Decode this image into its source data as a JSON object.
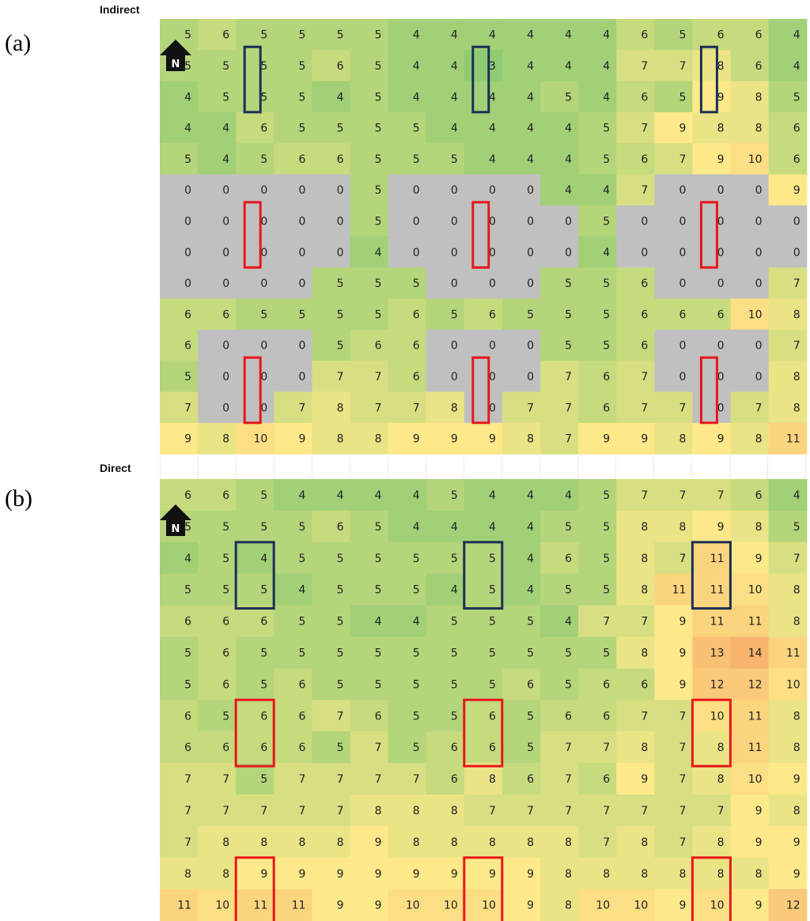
{
  "chart_data": [
    {
      "type": "heatmap",
      "panel_label": "(a)",
      "title": "Indirect",
      "north_marker": "N",
      "values": [
        [
          5,
          6,
          5,
          5,
          5,
          5,
          4,
          4,
          4,
          4,
          4,
          4,
          6,
          5,
          6,
          6,
          4
        ],
        [
          5,
          5,
          5,
          5,
          6,
          5,
          4,
          4,
          3,
          4,
          4,
          4,
          7,
          7,
          8,
          6,
          4
        ],
        [
          4,
          5,
          5,
          5,
          4,
          5,
          4,
          4,
          4,
          4,
          5,
          4,
          6,
          5,
          9,
          8,
          5
        ],
        [
          4,
          4,
          6,
          5,
          5,
          5,
          5,
          4,
          4,
          4,
          4,
          5,
          7,
          9,
          8,
          8,
          6
        ],
        [
          5,
          4,
          5,
          6,
          6,
          5,
          5,
          5,
          4,
          4,
          4,
          5,
          6,
          7,
          9,
          10,
          6
        ],
        [
          0,
          0,
          0,
          0,
          0,
          5,
          0,
          0,
          0,
          0,
          4,
          4,
          7,
          0,
          0,
          0,
          9
        ],
        [
          0,
          0,
          0,
          0,
          0,
          5,
          0,
          0,
          0,
          0,
          0,
          5,
          0,
          0,
          0,
          0,
          0
        ],
        [
          0,
          0,
          0,
          0,
          0,
          4,
          0,
          0,
          0,
          0,
          0,
          4,
          0,
          0,
          0,
          0,
          0
        ],
        [
          0,
          0,
          0,
          0,
          5,
          5,
          5,
          0,
          0,
          0,
          5,
          5,
          6,
          0,
          0,
          0,
          7
        ],
        [
          6,
          6,
          5,
          5,
          5,
          5,
          6,
          5,
          6,
          5,
          5,
          5,
          6,
          6,
          6,
          10,
          8
        ],
        [
          6,
          0,
          0,
          0,
          5,
          6,
          6,
          0,
          0,
          0,
          5,
          5,
          6,
          0,
          0,
          0,
          7
        ],
        [
          5,
          0,
          0,
          0,
          7,
          7,
          6,
          0,
          0,
          0,
          7,
          6,
          7,
          0,
          0,
          0,
          8
        ],
        [
          7,
          0,
          0,
          7,
          8,
          7,
          7,
          8,
          0,
          7,
          7,
          6,
          7,
          7,
          0,
          7,
          8
        ],
        [
          9,
          8,
          10,
          9,
          8,
          8,
          9,
          9,
          9,
          8,
          7,
          9,
          9,
          8,
          9,
          8,
          11
        ]
      ],
      "color_scale": {
        "low": "#8fcb72",
        "mid": "#fde98a",
        "high": "#f8b46d",
        "zero": "#c0c0c0"
      },
      "boxes": [
        {
          "color": "#1b2f55",
          "col": 2,
          "row": 1
        },
        {
          "color": "#1b2f55",
          "col": 8,
          "row": 1
        },
        {
          "color": "#1b2f55",
          "col": 14,
          "row": 1
        },
        {
          "color": "#e8161b",
          "col": 2,
          "row": 6
        },
        {
          "color": "#e8161b",
          "col": 8,
          "row": 6
        },
        {
          "color": "#e8161b",
          "col": 14,
          "row": 6
        },
        {
          "color": "#e8161b",
          "col": 2,
          "row": 11
        },
        {
          "color": "#e8161b",
          "col": 8,
          "row": 11
        },
        {
          "color": "#e8161b",
          "col": 14,
          "row": 11
        }
      ]
    },
    {
      "type": "heatmap",
      "panel_label": "(b)",
      "title": "Direct",
      "north_marker": "N",
      "values": [
        [
          6,
          6,
          5,
          4,
          4,
          4,
          4,
          5,
          4,
          4,
          4,
          5,
          7,
          7,
          7,
          6,
          4
        ],
        [
          5,
          5,
          5,
          5,
          6,
          5,
          4,
          4,
          4,
          4,
          5,
          5,
          8,
          8,
          9,
          8,
          5
        ],
        [
          4,
          5,
          4,
          5,
          5,
          5,
          5,
          5,
          5,
          4,
          6,
          5,
          8,
          7,
          11,
          9,
          7
        ],
        [
          5,
          5,
          5,
          4,
          5,
          5,
          5,
          4,
          5,
          4,
          5,
          5,
          8,
          11,
          11,
          10,
          8
        ],
        [
          6,
          6,
          6,
          5,
          5,
          4,
          4,
          5,
          5,
          5,
          4,
          7,
          7,
          9,
          11,
          11,
          8
        ],
        [
          5,
          6,
          5,
          5,
          5,
          5,
          5,
          5,
          5,
          5,
          5,
          5,
          8,
          9,
          13,
          14,
          11
        ],
        [
          5,
          6,
          5,
          6,
          5,
          5,
          5,
          5,
          5,
          6,
          5,
          6,
          6,
          9,
          12,
          12,
          10
        ],
        [
          6,
          5,
          6,
          6,
          7,
          6,
          5,
          5,
          6,
          5,
          6,
          6,
          7,
          7,
          10,
          11,
          8
        ],
        [
          6,
          6,
          6,
          6,
          5,
          7,
          5,
          6,
          6,
          5,
          7,
          7,
          8,
          7,
          8,
          11,
          8
        ],
        [
          7,
          7,
          5,
          7,
          7,
          7,
          7,
          6,
          8,
          6,
          7,
          6,
          9,
          7,
          8,
          10,
          9
        ],
        [
          7,
          7,
          7,
          7,
          7,
          8,
          8,
          8,
          7,
          7,
          7,
          7,
          7,
          7,
          7,
          9,
          8
        ],
        [
          7,
          8,
          8,
          8,
          8,
          9,
          8,
          8,
          8,
          8,
          8,
          7,
          8,
          7,
          8,
          9,
          9
        ],
        [
          8,
          8,
          9,
          9,
          9,
          9,
          9,
          9,
          9,
          9,
          8,
          8,
          8,
          8,
          8,
          8,
          9
        ],
        [
          11,
          10,
          11,
          11,
          9,
          9,
          10,
          10,
          10,
          9,
          8,
          10,
          10,
          9,
          10,
          9,
          12
        ]
      ],
      "color_scale": {
        "low": "#8fcb72",
        "mid": "#fde98a",
        "high": "#f8b46d",
        "zero": "#c0c0c0"
      },
      "boxes": [
        {
          "color": "#1b2f55",
          "col": 2,
          "row": 2
        },
        {
          "color": "#1b2f55",
          "col": 8,
          "row": 2
        },
        {
          "color": "#1b2f55",
          "col": 14,
          "row": 2
        },
        {
          "color": "#e8161b",
          "col": 2,
          "row": 7
        },
        {
          "color": "#e8161b",
          "col": 8,
          "row": 7
        },
        {
          "color": "#e8161b",
          "col": 14,
          "row": 7
        },
        {
          "color": "#e8161b",
          "col": 2,
          "row": 12
        },
        {
          "color": "#e8161b",
          "col": 8,
          "row": 12
        },
        {
          "color": "#e8161b",
          "col": 14,
          "row": 12
        }
      ]
    }
  ]
}
